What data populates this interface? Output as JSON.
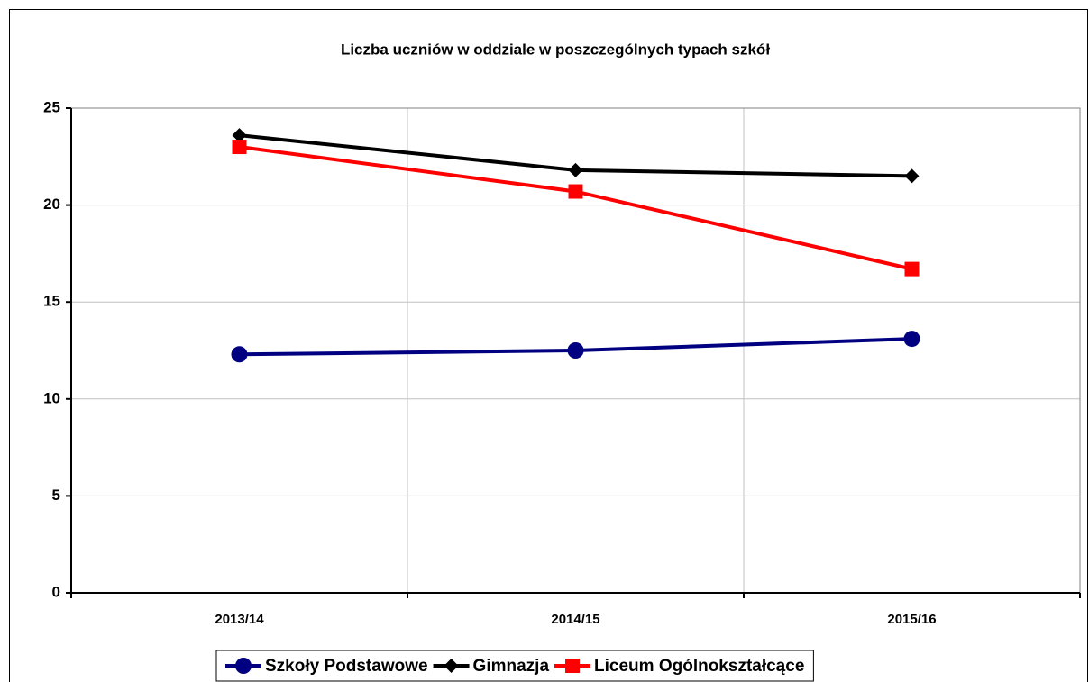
{
  "chart_data": {
    "type": "line",
    "title": "Liczba uczniów w oddziale w poszczególnych typach szkół",
    "categories": [
      "2013/14",
      "2014/15",
      "2015/16"
    ],
    "series": [
      {
        "name": "Szkoły Podstawowe",
        "color": "#000080",
        "marker": "circle",
        "values": [
          12.3,
          12.5,
          13.1
        ]
      },
      {
        "name": "Gimnazja",
        "color": "#000000",
        "marker": "diamond",
        "values": [
          23.6,
          21.8,
          21.5
        ]
      },
      {
        "name": "Liceum Ogólnokształcące",
        "color": "#ff0000",
        "marker": "square",
        "values": [
          23.0,
          20.7,
          16.7
        ]
      }
    ],
    "ylim": [
      0,
      25
    ],
    "yticks": [
      0,
      5,
      10,
      15,
      20,
      25
    ],
    "grid": true,
    "legend": "bottom"
  }
}
